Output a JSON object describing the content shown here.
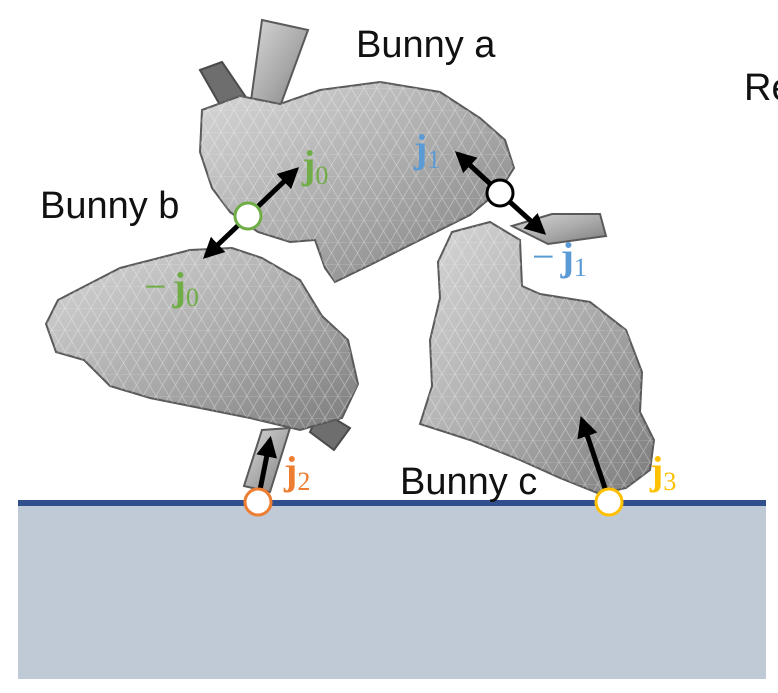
{
  "labels": {
    "bunny_a": "Bunny a",
    "bunny_b": "Bunny b",
    "bunny_c": "Bunny c",
    "cut_text": "Re"
  },
  "vectors": {
    "j0": {
      "letter": "j",
      "sub": "0",
      "neg": "",
      "color": "#70ad47"
    },
    "neg_j0": {
      "letter": "j",
      "sub": "0",
      "neg": "−",
      "color": "#70ad47"
    },
    "j1": {
      "letter": "j",
      "sub": "1",
      "neg": "",
      "color": "#5b9bd5"
    },
    "neg_j1": {
      "letter": "j",
      "sub": "1",
      "neg": "−",
      "color": "#5b9bd5"
    },
    "j2": {
      "letter": "j",
      "sub": "2",
      "neg": "",
      "color": "#ed7d31"
    },
    "j3": {
      "letter": "j",
      "sub": "3",
      "neg": "",
      "color": "#ffc000"
    }
  },
  "colors": {
    "ground_fill": "#c0c9d6",
    "ground_line": "#2f4f8f",
    "mesh_fill": "#b8b8b8",
    "mesh_edge": "#5a5a5a",
    "arrow": "#000000",
    "contact_ab": "#70ad47",
    "contact_ac": "#ffffff",
    "contact_b_ground": "#ed7d31",
    "contact_c_ground": "#ffc000"
  }
}
